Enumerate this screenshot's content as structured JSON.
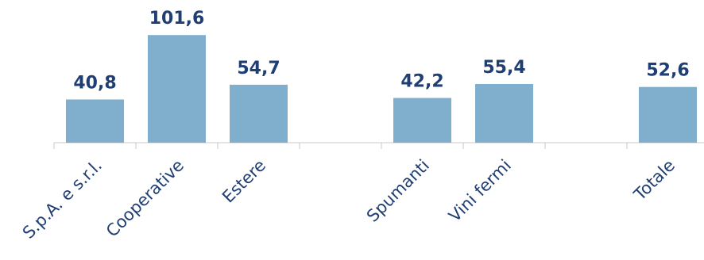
{
  "chart_data": {
    "type": "bar",
    "categories": [
      "S.p.A. e s.r.l.",
      "Cooperative",
      "Estere",
      "",
      "Spumanti",
      "Vini fermi",
      "",
      "Totale"
    ],
    "values": [
      40.8,
      101.6,
      54.7,
      null,
      42.2,
      55.4,
      null,
      52.6
    ],
    "data_labels": [
      "40,8",
      "101,6",
      "54,7",
      "",
      "42,2",
      "55,4",
      "",
      "52,6"
    ],
    "title": "",
    "xlabel": "",
    "ylabel": "",
    "ylim": [
      0,
      110
    ],
    "grid": false,
    "legend": "none",
    "colors": {
      "bar": "#80aecd",
      "text": "#1f3f74",
      "axis": "#c8c8c8"
    }
  }
}
